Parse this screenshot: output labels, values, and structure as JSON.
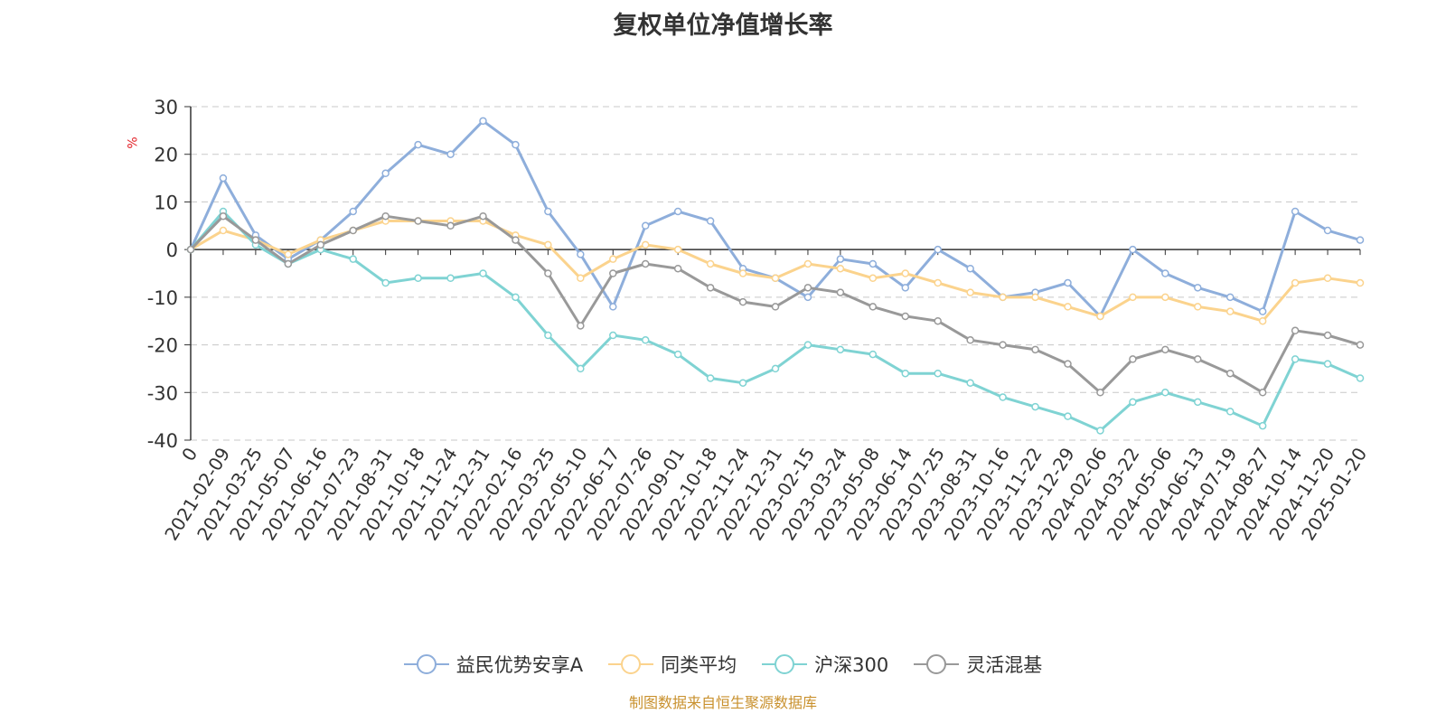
{
  "chart_data": {
    "type": "line",
    "title": "复权单位净值增长率",
    "ylabel": "%",
    "xlabel": "",
    "ylim": [
      -40,
      30
    ],
    "yticks": [
      30,
      20,
      10,
      0,
      -10,
      -20,
      -30,
      -40
    ],
    "grid": true,
    "legend_position": "bottom",
    "x_tick_labels": [
      "0",
      "2021-02-09",
      "2021-03-25",
      "2021-05-07",
      "2021-06-16",
      "2021-07-23",
      "2021-08-31",
      "2021-10-18",
      "2021-11-24",
      "2021-12-31",
      "2022-02-16",
      "2022-03-25",
      "2022-05-10",
      "2022-06-17",
      "2022-07-26",
      "2022-09-01",
      "2022-10-18",
      "2022-11-24",
      "2022-12-31",
      "2023-02-15",
      "2023-03-24",
      "2023-05-08",
      "2023-06-14",
      "2023-07-25",
      "2023-08-31",
      "2023-10-16",
      "2023-11-22",
      "2023-12-29",
      "2024-02-06",
      "2024-03-22",
      "2024-05-06",
      "2024-06-13",
      "2024-07-19",
      "2024-08-27",
      "2024-10-14",
      "2024-11-20",
      "2025-01-20"
    ],
    "series": [
      {
        "name": "益民优势安享A",
        "color": "#8eaedb",
        "values": [
          0,
          15,
          3,
          -2,
          2,
          8,
          16,
          22,
          20,
          27,
          22,
          8,
          -1,
          -12,
          5,
          8,
          6,
          -4,
          -6,
          -10,
          -2,
          -3,
          -8,
          0,
          -4,
          -10,
          -9,
          -7,
          -14,
          0,
          -5,
          -8,
          -10,
          -13,
          8,
          4,
          2
        ]
      },
      {
        "name": "同类平均",
        "color": "#fbd38d",
        "values": [
          0,
          4,
          2,
          -1,
          2,
          4,
          6,
          6,
          6,
          6,
          3,
          1,
          -6,
          -2,
          1,
          0,
          -3,
          -5,
          -6,
          -3,
          -4,
          -6,
          -5,
          -7,
          -9,
          -10,
          -10,
          -12,
          -14,
          -10,
          -10,
          -12,
          -13,
          -15,
          -7,
          -6,
          -7
        ]
      },
      {
        "name": "沪深300",
        "color": "#7fd3d3",
        "values": [
          0,
          8,
          1,
          -3,
          0,
          -2,
          -7,
          -6,
          -6,
          -5,
          -10,
          -18,
          -25,
          -18,
          -19,
          -22,
          -27,
          -28,
          -25,
          -20,
          -21,
          -22,
          -26,
          -26,
          -28,
          -31,
          -33,
          -35,
          -38,
          -32,
          -30,
          -32,
          -34,
          -37,
          -23,
          -24,
          -27
        ]
      },
      {
        "name": "灵活混基",
        "color": "#999999",
        "values": [
          0,
          7,
          2,
          -3,
          1,
          4,
          7,
          6,
          5,
          7,
          2,
          -5,
          -16,
          -5,
          -3,
          -4,
          -8,
          -11,
          -12,
          -8,
          -9,
          -12,
          -14,
          -15,
          -19,
          -20,
          -21,
          -24,
          -30,
          -23,
          -21,
          -23,
          -26,
          -30,
          -17,
          -18,
          -20
        ]
      }
    ]
  },
  "legend": {
    "items": [
      {
        "label": "益民优势安享A",
        "color": "#8eaedb"
      },
      {
        "label": "同类平均",
        "color": "#fbd38d"
      },
      {
        "label": "沪深300",
        "color": "#7fd3d3"
      },
      {
        "label": "灵活混基",
        "color": "#999999"
      }
    ]
  },
  "source_text": "制图数据来自恒生聚源数据库"
}
